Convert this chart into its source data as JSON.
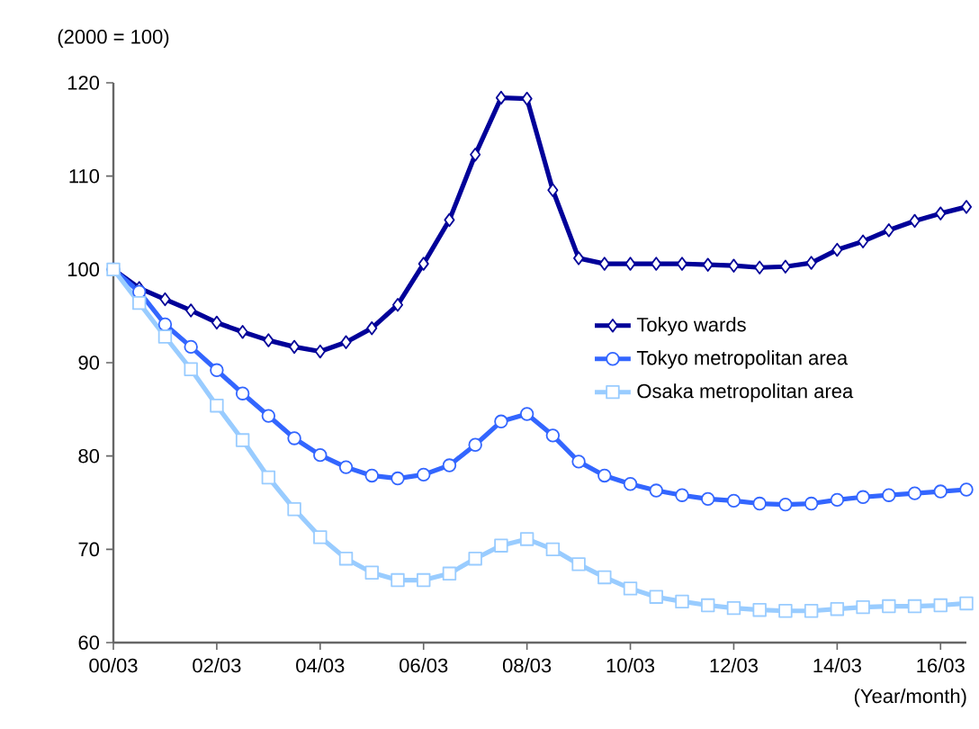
{
  "chart_data": {
    "type": "line",
    "ylabel": "(2000 = 100)",
    "xlabel": "(Year/month)",
    "x": [
      "2000-03",
      "2000-09",
      "2001-03",
      "2001-09",
      "2002-03",
      "2002-09",
      "2003-03",
      "2003-09",
      "2004-03",
      "2004-09",
      "2005-03",
      "2005-09",
      "2006-03",
      "2006-09",
      "2007-03",
      "2007-09",
      "2008-03",
      "2008-09",
      "2009-03",
      "2009-09",
      "2010-03",
      "2010-09",
      "2011-03",
      "2011-09",
      "2012-03",
      "2012-09",
      "2013-03",
      "2013-09",
      "2014-03",
      "2014-09",
      "2015-03",
      "2015-09",
      "2016-03",
      "2016-09"
    ],
    "xlim": [
      "2000-03",
      "2016-09"
    ],
    "xticks": [
      {
        "value": "2000-03",
        "label": "00/03"
      },
      {
        "value": "2002-03",
        "label": "02/03"
      },
      {
        "value": "2004-03",
        "label": "04/03"
      },
      {
        "value": "2006-03",
        "label": "06/03"
      },
      {
        "value": "2008-03",
        "label": "08/03"
      },
      {
        "value": "2010-03",
        "label": "10/03"
      },
      {
        "value": "2012-03",
        "label": "12/03"
      },
      {
        "value": "2014-03",
        "label": "14/03"
      },
      {
        "value": "2016-03",
        "label": "16/03"
      }
    ],
    "ylim": [
      60,
      120
    ],
    "yticks": [
      60,
      70,
      80,
      90,
      100,
      110,
      120
    ],
    "legend": "right",
    "line_style": "solid",
    "series": [
      {
        "name": "Tokyo wards",
        "color": "#000099",
        "marker": "diamond",
        "values": [
          100,
          98.0,
          96.8,
          95.6,
          94.3,
          93.3,
          92.4,
          91.7,
          91.2,
          92.2,
          93.7,
          96.2,
          100.6,
          105.3,
          112.3,
          118.4,
          118.3,
          108.5,
          101.2,
          100.6,
          100.6,
          100.6,
          100.6,
          100.5,
          100.4,
          100.2,
          100.3,
          100.7,
          102.1,
          103.0,
          104.2,
          105.2,
          106.0,
          106.7
        ]
      },
      {
        "name": "Tokyo metropolitan area",
        "color": "#3366ff",
        "marker": "circle",
        "values": [
          100,
          97.6,
          94.1,
          91.7,
          89.2,
          86.7,
          84.3,
          81.9,
          80.1,
          78.8,
          77.9,
          77.6,
          78.0,
          79.0,
          81.2,
          83.7,
          84.5,
          82.2,
          79.4,
          77.9,
          77.0,
          76.3,
          75.8,
          75.4,
          75.2,
          74.9,
          74.8,
          74.9,
          75.3,
          75.6,
          75.8,
          76.0,
          76.2,
          76.4
        ]
      },
      {
        "name": "Osaka metropolitan area",
        "color": "#99ccff",
        "marker": "square",
        "values": [
          100,
          96.4,
          92.8,
          89.3,
          85.4,
          81.7,
          77.7,
          74.3,
          71.3,
          69.0,
          67.5,
          66.7,
          66.7,
          67.4,
          69.0,
          70.4,
          71.1,
          70.0,
          68.4,
          67.0,
          65.8,
          64.9,
          64.4,
          64.0,
          63.7,
          63.5,
          63.4,
          63.4,
          63.6,
          63.8,
          63.9,
          63.9,
          64.0,
          64.2
        ]
      }
    ]
  }
}
